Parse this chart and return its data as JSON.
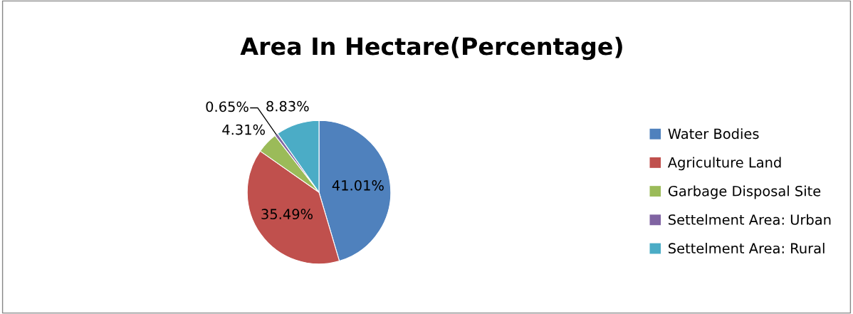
{
  "chart_data": {
    "type": "pie",
    "title": "Area In Hectare(Percentage)",
    "categories": [
      "Water Bodies",
      "Agriculture Land",
      "Garbage Disposal Site",
      "Settelment Area: Urban",
      "Settelment Area: Rural"
    ],
    "values": [
      41.01,
      35.49,
      4.31,
      0.65,
      8.83
    ],
    "colors": [
      "#4f81bd",
      "#c0504d",
      "#9bbb59",
      "#8064a2",
      "#4bacc6"
    ],
    "value_labels": [
      "41.01%",
      "35.49%",
      "4.31%",
      "0.65%",
      "8.83%"
    ],
    "legend": "right"
  }
}
